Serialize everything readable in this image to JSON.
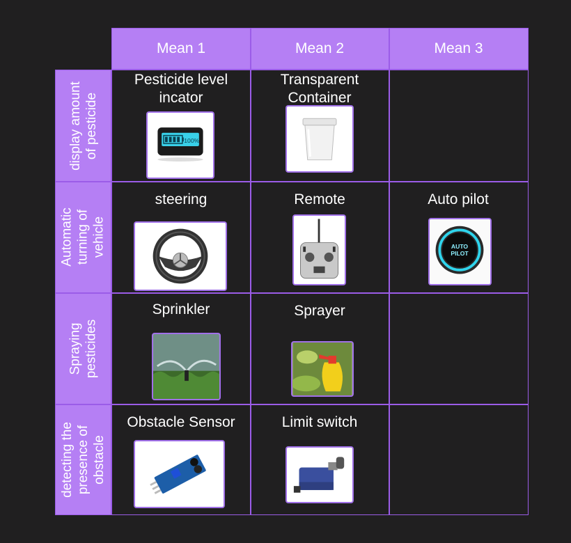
{
  "columns": [
    "Mean 1",
    "Mean 2",
    "Mean 3"
  ],
  "rows": [
    {
      "label": "display amount\nof pesticide",
      "means": [
        {
          "caption": "Pesticide level\nincator",
          "icon": "battery-level-display-icon",
          "display_text": "100%"
        },
        {
          "caption": "Transparent\nContainer",
          "icon": "transparent-container-icon"
        },
        null
      ]
    },
    {
      "label": "Automatic\nturning of\nvehicle",
      "means": [
        {
          "caption": "steering",
          "icon": "steering-wheel-icon"
        },
        {
          "caption": "Remote",
          "icon": "remote-controller-icon"
        },
        {
          "caption": "Auto pilot",
          "icon": "auto-pilot-button-icon",
          "button_text": "AUTO\nPILOT"
        }
      ]
    },
    {
      "label": "Spraying\npesticides",
      "means": [
        {
          "caption": "Sprinkler",
          "icon": "sprinkler-icon"
        },
        {
          "caption": "Sprayer",
          "icon": "spray-bottle-icon"
        },
        null
      ]
    },
    {
      "label": "detecting the\npresence of\nobstacle",
      "means": [
        {
          "caption": "Obstacle Sensor",
          "icon": "ir-obstacle-sensor-icon"
        },
        {
          "caption": "Limit switch",
          "icon": "limit-switch-icon"
        },
        null
      ]
    }
  ],
  "colors": {
    "header_bg": "#b57ff4",
    "grid_line": "#9b5ce8",
    "background": "#201f20"
  }
}
